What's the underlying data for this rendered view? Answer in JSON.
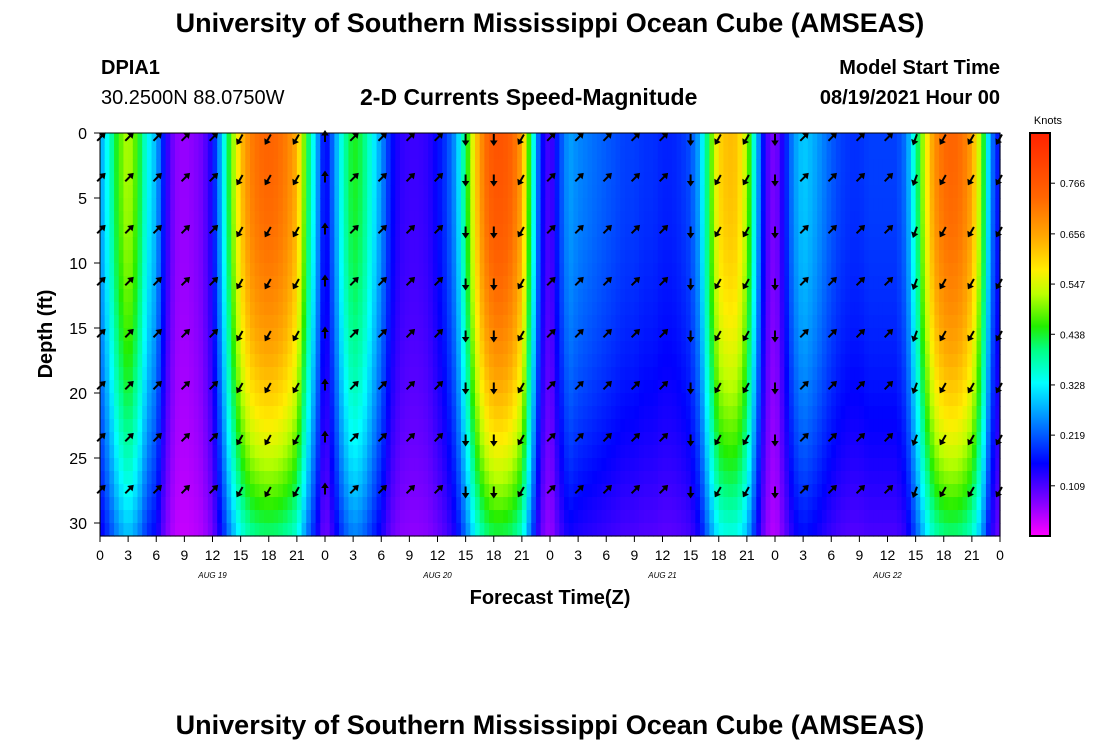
{
  "header": {
    "title": "University of Southern Mississippi Ocean Cube (AMSEAS)",
    "station": "DPIA1",
    "coords": "30.2500N  88.0750W",
    "subtitle": "2-D Currents Speed-Magnitude",
    "model_label": "Model Start Time",
    "model_time": "08/19/2021 Hour 00"
  },
  "footer": {
    "title": "University of Southern Mississippi Ocean Cube (AMSEAS)"
  },
  "colors": {
    "arrow": "#000000",
    "axis": "#000000",
    "background": "#ffffff"
  },
  "chart_data": {
    "type": "heatmap",
    "title": "2-D Currents Speed-Magnitude",
    "xlabel": "Forecast Time(Z)",
    "ylabel": "Depth (ft)",
    "xlim": [
      0,
      96
    ],
    "ylim": [
      0,
      31
    ],
    "x_ticks": [
      0,
      3,
      6,
      9,
      12,
      15,
      18,
      21,
      24,
      27,
      30,
      33,
      36,
      39,
      42,
      45,
      48,
      51,
      54,
      57,
      60,
      63,
      66,
      69,
      72,
      75,
      78,
      81,
      84,
      87,
      90,
      93,
      96
    ],
    "x_tick_labels": [
      "0",
      "3",
      "6",
      "9",
      "12",
      "15",
      "18",
      "21",
      "0",
      "3",
      "6",
      "9",
      "12",
      "15",
      "18",
      "21",
      "0",
      "3",
      "6",
      "9",
      "12",
      "15",
      "18",
      "21",
      "0",
      "3",
      "6",
      "9",
      "12",
      "15",
      "18",
      "21",
      "0"
    ],
    "day_labels": [
      {
        "hour": 12,
        "label": "AUG 19"
      },
      {
        "hour": 36,
        "label": "AUG 20"
      },
      {
        "hour": 60,
        "label": "AUG 21"
      },
      {
        "hour": 84,
        "label": "AUG 22"
      }
    ],
    "y_ticks": [
      0,
      5,
      10,
      15,
      20,
      25,
      30
    ],
    "colorbar": {
      "unit": "Knots",
      "ticks": [
        0.109,
        0.219,
        0.328,
        0.438,
        0.547,
        0.656,
        0.766
      ],
      "range": [
        0.0,
        0.875
      ]
    },
    "surface_speed_knots": [
      {
        "hour": 0,
        "speed": 0.26
      },
      {
        "hour": 1,
        "speed": 0.36
      },
      {
        "hour": 2,
        "speed": 0.47
      },
      {
        "hour": 3,
        "speed": 0.53
      },
      {
        "hour": 4,
        "speed": 0.46
      },
      {
        "hour": 5,
        "speed": 0.34
      },
      {
        "hour": 6,
        "speed": 0.28
      },
      {
        "hour": 7,
        "speed": 0.14
      },
      {
        "hour": 8,
        "speed": 0.07
      },
      {
        "hour": 9,
        "speed": 0.06
      },
      {
        "hour": 10,
        "speed": 0.07
      },
      {
        "hour": 11,
        "speed": 0.09
      },
      {
        "hour": 12,
        "speed": 0.15
      },
      {
        "hour": 13,
        "speed": 0.3
      },
      {
        "hour": 14,
        "speed": 0.48
      },
      {
        "hour": 15,
        "speed": 0.62
      },
      {
        "hour": 16,
        "speed": 0.7
      },
      {
        "hour": 17,
        "speed": 0.73
      },
      {
        "hour": 18,
        "speed": 0.74
      },
      {
        "hour": 19,
        "speed": 0.73
      },
      {
        "hour": 20,
        "speed": 0.7
      },
      {
        "hour": 21,
        "speed": 0.64
      },
      {
        "hour": 22,
        "speed": 0.45
      },
      {
        "hour": 23,
        "speed": 0.3
      },
      {
        "hour": 24,
        "speed": 0.14
      },
      {
        "hour": 25,
        "speed": 0.25
      },
      {
        "hour": 26,
        "speed": 0.38
      },
      {
        "hour": 27,
        "speed": 0.45
      },
      {
        "hour": 28,
        "speed": 0.42
      },
      {
        "hour": 29,
        "speed": 0.34
      },
      {
        "hour": 30,
        "speed": 0.26
      },
      {
        "hour": 31,
        "speed": 0.17
      },
      {
        "hour": 32,
        "speed": 0.13
      },
      {
        "hour": 33,
        "speed": 0.12
      },
      {
        "hour": 34,
        "speed": 0.12
      },
      {
        "hour": 35,
        "speed": 0.13
      },
      {
        "hour": 36,
        "speed": 0.16
      },
      {
        "hour": 37,
        "speed": 0.2
      },
      {
        "hour": 38,
        "speed": 0.27
      },
      {
        "hour": 39,
        "speed": 0.42
      },
      {
        "hour": 40,
        "speed": 0.6
      },
      {
        "hour": 41,
        "speed": 0.72
      },
      {
        "hour": 42,
        "speed": 0.77
      },
      {
        "hour": 43,
        "speed": 0.77
      },
      {
        "hour": 44,
        "speed": 0.74
      },
      {
        "hour": 45,
        "speed": 0.66
      },
      {
        "hour": 46,
        "speed": 0.4
      },
      {
        "hour": 47,
        "speed": 0.17
      },
      {
        "hour": 48,
        "speed": 0.1
      },
      {
        "hour": 49,
        "speed": 0.2
      },
      {
        "hour": 50,
        "speed": 0.27
      },
      {
        "hour": 51,
        "speed": 0.25
      },
      {
        "hour": 52,
        "speed": 0.24
      },
      {
        "hour": 53,
        "speed": 0.23
      },
      {
        "hour": 54,
        "speed": 0.22
      },
      {
        "hour": 55,
        "speed": 0.21
      },
      {
        "hour": 56,
        "speed": 0.2
      },
      {
        "hour": 57,
        "speed": 0.2
      },
      {
        "hour": 58,
        "speed": 0.19
      },
      {
        "hour": 59,
        "speed": 0.19
      },
      {
        "hour": 60,
        "speed": 0.18
      },
      {
        "hour": 61,
        "speed": 0.18
      },
      {
        "hour": 62,
        "speed": 0.19
      },
      {
        "hour": 63,
        "speed": 0.21
      },
      {
        "hour": 64,
        "speed": 0.28
      },
      {
        "hour": 65,
        "speed": 0.45
      },
      {
        "hour": 66,
        "speed": 0.6
      },
      {
        "hour": 67,
        "speed": 0.63
      },
      {
        "hour": 68,
        "speed": 0.62
      },
      {
        "hour": 69,
        "speed": 0.52
      },
      {
        "hour": 70,
        "speed": 0.3
      },
      {
        "hour": 71,
        "speed": 0.12
      },
      {
        "hour": 72,
        "speed": 0.07
      },
      {
        "hour": 73,
        "speed": 0.16
      },
      {
        "hour": 74,
        "speed": 0.26
      },
      {
        "hour": 75,
        "speed": 0.3
      },
      {
        "hour": 76,
        "speed": 0.28
      },
      {
        "hour": 77,
        "speed": 0.25
      },
      {
        "hour": 78,
        "speed": 0.22
      },
      {
        "hour": 79,
        "speed": 0.2
      },
      {
        "hour": 80,
        "speed": 0.19
      },
      {
        "hour": 81,
        "speed": 0.19
      },
      {
        "hour": 82,
        "speed": 0.2
      },
      {
        "hour": 83,
        "speed": 0.2
      },
      {
        "hour": 84,
        "speed": 0.2
      },
      {
        "hour": 85,
        "speed": 0.2
      },
      {
        "hour": 86,
        "speed": 0.24
      },
      {
        "hour": 87,
        "speed": 0.38
      },
      {
        "hour": 88,
        "speed": 0.55
      },
      {
        "hour": 89,
        "speed": 0.68
      },
      {
        "hour": 90,
        "speed": 0.73
      },
      {
        "hour": 91,
        "speed": 0.74
      },
      {
        "hour": 92,
        "speed": 0.72
      },
      {
        "hour": 93,
        "speed": 0.66
      },
      {
        "hour": 94,
        "speed": 0.5
      },
      {
        "hour": 95,
        "speed": 0.25
      },
      {
        "hour": 96,
        "speed": 0.15
      }
    ],
    "arrow_depths_ft": [
      0,
      3.5,
      7.5,
      11.5,
      15.5,
      19.5,
      23.5,
      27.5
    ],
    "arrow_hours": [
      0,
      3,
      6,
      9,
      12,
      15,
      18,
      21,
      24,
      27,
      30,
      33,
      36,
      39,
      42,
      45,
      48,
      51,
      54,
      57,
      60,
      63,
      66,
      69,
      72,
      75,
      78,
      81,
      84,
      87,
      90,
      93,
      96
    ],
    "arrow_direction_deg": [
      45,
      45,
      45,
      45,
      45,
      210,
      210,
      210,
      0,
      45,
      45,
      45,
      45,
      180,
      180,
      210,
      45,
      45,
      45,
      45,
      45,
      180,
      210,
      210,
      180,
      45,
      45,
      45,
      45,
      200,
      210,
      210,
      210
    ]
  }
}
